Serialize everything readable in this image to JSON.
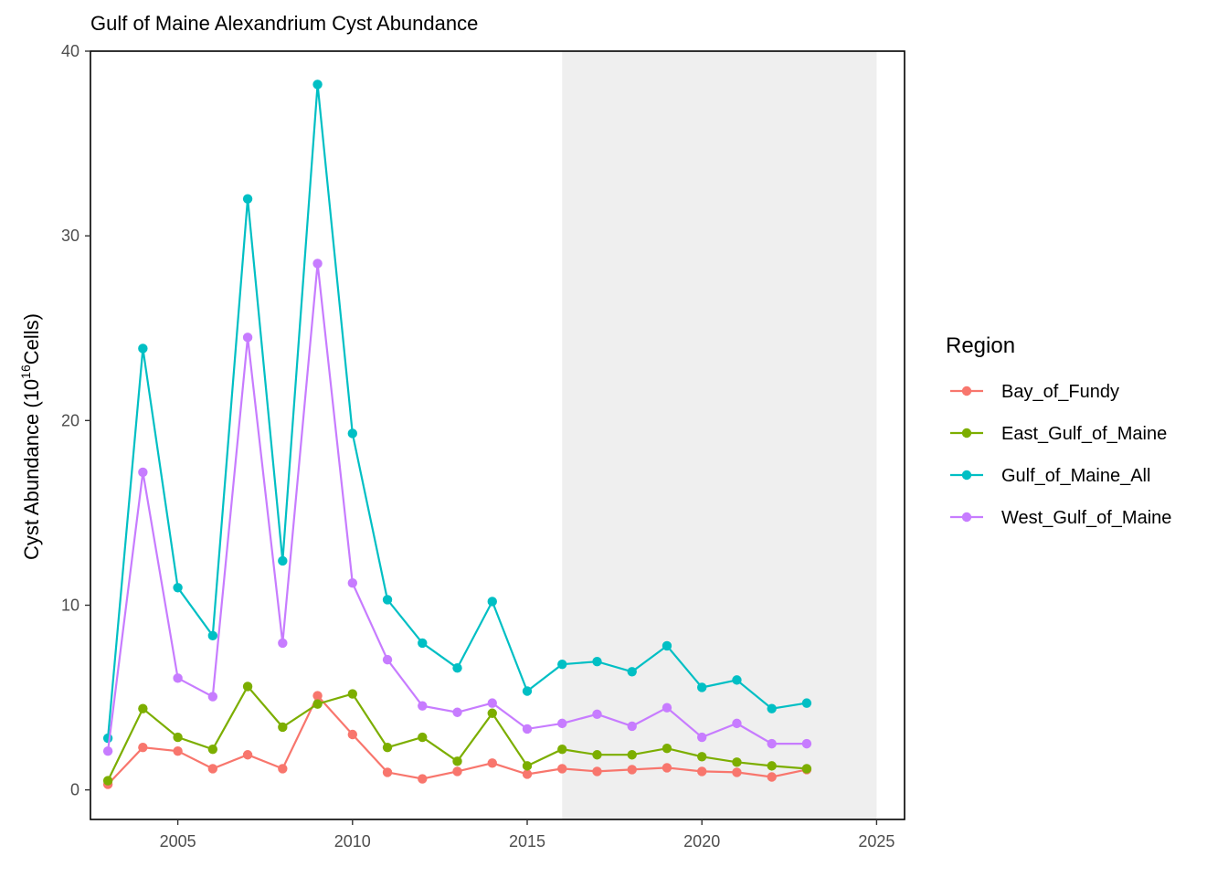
{
  "chart_data": {
    "type": "line",
    "title": "Gulf of Maine Alexandrium Cyst Abundance",
    "xlabel": "",
    "ylabel": "Cyst Abundance (10",
    "ylabel_superscript": "16",
    "ylabel_suffix": "Cells)",
    "xlim": [
      2002.5,
      2025.8
    ],
    "ylim": [
      -1.6,
      40
    ],
    "x_ticks": [
      2005,
      2010,
      2015,
      2020,
      2025
    ],
    "y_ticks": [
      0,
      10,
      20,
      30,
      40
    ],
    "shaded_region": {
      "x_start": 2016,
      "x_end": 2025,
      "color": "#efefef"
    },
    "grid": false,
    "legend": {
      "title": "Region",
      "position": "right"
    },
    "x": [
      2003,
      2004,
      2005,
      2006,
      2007,
      2008,
      2009,
      2010,
      2011,
      2012,
      2013,
      2014,
      2015,
      2016,
      2017,
      2018,
      2019,
      2020,
      2021,
      2022,
      2023
    ],
    "series": [
      {
        "name": "Bay_of_Fundy",
        "color": "#F8766D",
        "values": [
          0.3,
          2.3,
          2.1,
          1.15,
          1.9,
          1.15,
          5.1,
          3.0,
          0.95,
          0.6,
          1.0,
          1.45,
          0.85,
          1.15,
          1.0,
          1.1,
          1.2,
          1.0,
          0.95,
          0.7,
          1.1
        ]
      },
      {
        "name": "East_Gulf_of_Maine",
        "color": "#7CAE00",
        "values": [
          0.5,
          4.4,
          2.85,
          2.2,
          5.6,
          3.4,
          4.65,
          5.2,
          2.3,
          2.85,
          1.55,
          4.15,
          1.3,
          2.2,
          1.9,
          1.9,
          2.25,
          1.8,
          1.5,
          1.3,
          1.15
        ]
      },
      {
        "name": "Gulf_of_Maine_All",
        "color": "#00BFC4",
        "values": [
          2.8,
          23.9,
          10.95,
          8.35,
          32.0,
          12.4,
          38.2,
          19.3,
          10.3,
          7.95,
          6.6,
          10.2,
          5.35,
          6.8,
          6.95,
          6.4,
          7.8,
          5.55,
          5.95,
          4.4,
          4.7
        ]
      },
      {
        "name": "West_Gulf_of_Maine",
        "color": "#C77CFF",
        "values": [
          2.1,
          17.2,
          6.05,
          5.05,
          24.5,
          7.95,
          28.5,
          11.2,
          7.05,
          4.55,
          4.2,
          4.7,
          3.3,
          3.6,
          4.1,
          3.45,
          4.45,
          2.85,
          3.6,
          2.5,
          2.5
        ]
      }
    ]
  }
}
